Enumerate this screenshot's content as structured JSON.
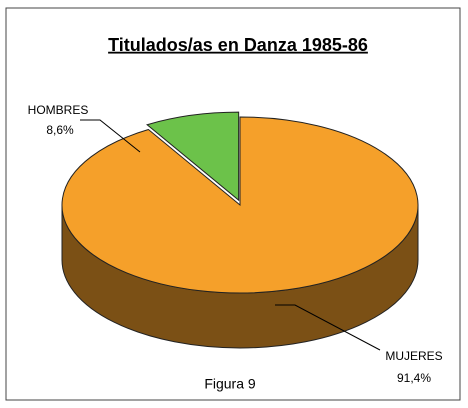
{
  "chart_data": {
    "type": "pie3d",
    "title": "Titulados/as en Danza 1985-86",
    "categories": [
      "HOMBRES",
      "MUJERES"
    ],
    "values": [
      8.6,
      91.4
    ],
    "value_labels": [
      "8,6%",
      "91,4%"
    ],
    "colors": [
      "#6cc24a",
      "#f5a02a"
    ],
    "annotation": "Figura 9"
  }
}
